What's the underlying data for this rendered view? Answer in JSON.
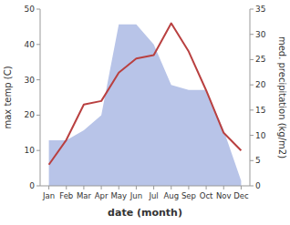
{
  "chart_data": {
    "type": "line",
    "categories": [
      "Jan",
      "Feb",
      "Mar",
      "Apr",
      "May",
      "Jun",
      "Jul",
      "Aug",
      "Sep",
      "Oct",
      "Nov",
      "Dec"
    ],
    "series": [
      {
        "type": "line",
        "color": "#b94040",
        "values": [
          6,
          13,
          23,
          24,
          32,
          36,
          37,
          46,
          38,
          27,
          15,
          10
        ]
      },
      {
        "type": "area",
        "color": "#b8c4e8",
        "axis": "y2",
        "values": [
          9,
          9,
          11,
          14,
          32,
          32,
          28,
          20,
          19,
          19,
          11,
          1
        ]
      }
    ],
    "xlabel": "date (month)",
    "ylabel": "max temp (C)",
    "y2label": "med. precipitation (kg/m2)",
    "ylim": [
      0,
      50
    ],
    "yticks": [
      0,
      10,
      20,
      30,
      40,
      50
    ],
    "y2lim": [
      0,
      35
    ],
    "y2ticks": [
      0,
      5,
      10,
      15,
      20,
      25,
      30,
      35
    ],
    "grid": false
  }
}
